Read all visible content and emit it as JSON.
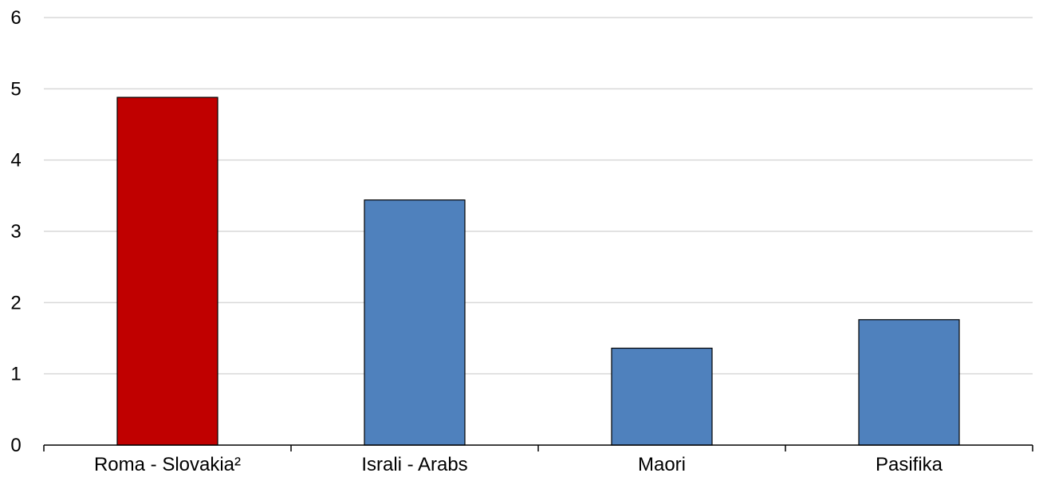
{
  "chart_data": {
    "type": "bar",
    "categories": [
      "Roma - Slovakia²",
      "Israli - Arabs",
      "Maori",
      "Pasifika"
    ],
    "values": [
      4.88,
      3.44,
      1.36,
      1.76
    ],
    "bar_colors": [
      "#C00000",
      "#4F81BD",
      "#4F81BD",
      "#4F81BD"
    ],
    "ylim": [
      0,
      6
    ],
    "yticks": [
      0,
      1,
      2,
      3,
      4,
      5,
      6
    ],
    "grid": true,
    "title": "",
    "xlabel": "",
    "ylabel": ""
  },
  "colors": {
    "highlight": "#C00000",
    "bar": "#4F81BD",
    "grid": "#D9D9D9",
    "axis": "#000000"
  }
}
